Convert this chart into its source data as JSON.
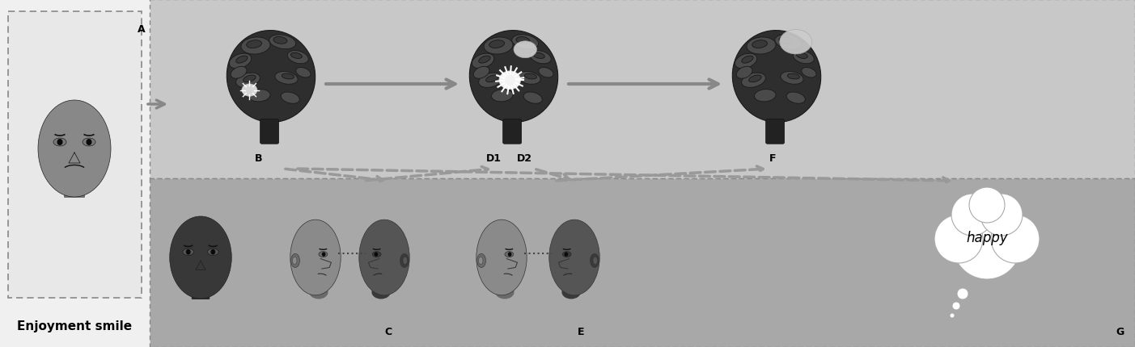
{
  "white_bg": "#ffffff",
  "top_panel_bg": "#cbcbcb",
  "bottom_panel_bg": "#a9a9a9",
  "title_text": "Enjoyment smile",
  "label_A": "A",
  "label_B": "B",
  "label_D1": "D1",
  "label_D2": "D2",
  "label_F": "F",
  "label_C": "C",
  "label_E": "E",
  "label_G": "G",
  "happy_text": "happy",
  "font_size_label": 9,
  "font_size_title": 11,
  "font_size_happy": 12,
  "arrow_color": "#999999",
  "solid_arrow_color": "#888888",
  "dashed_color": "#888888"
}
